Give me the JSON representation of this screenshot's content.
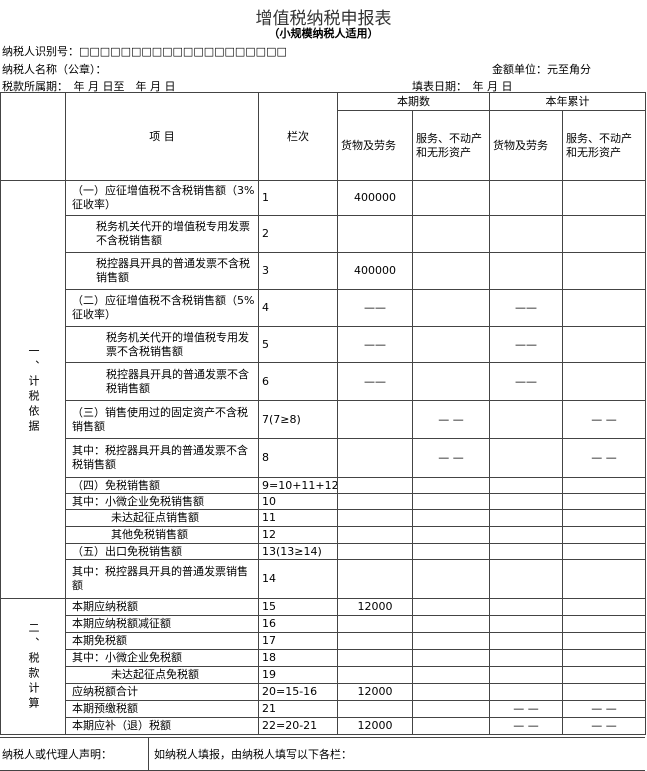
{
  "header": {
    "title": "增值税纳税申报表",
    "subtitle": "（小规模纳税人适用）",
    "taxpayer_id": "纳税人识别号：□□□□□□□□□□□□□□□□□□□□",
    "taxpayer_name": "纳税人名称（公章）：",
    "unit": "金额单位：元至角分",
    "period": "税款所属期：　年 月 日至　年 月 日",
    "fill_date": "填表日期：　年 月 日"
  },
  "table": {
    "col_item": "项 目",
    "col_line": "栏次",
    "current": "本期数",
    "ytd": "本年累计",
    "goods": "货物及劳务",
    "services": "服务、不动产和无形资产",
    "sections": [
      {
        "label": "一、计税依据",
        "rows": [
          [
            "（一）应征增值税不含税销售额（3%征收率）",
            "1",
            "400000",
            null,
            null,
            null
          ],
          [
            "税务机关代开的增值税专用发票不含税销售额",
            "2",
            null,
            null,
            null,
            null
          ],
          [
            "税控器具开具的普通发票不含税销售额",
            "3",
            "400000",
            null,
            null,
            null
          ],
          [
            "（二）应征增值税不含税销售额（5%征收率）",
            "4",
            "——",
            null,
            "——",
            null
          ],
          [
            "税务机关代开的增值税专用发票不含税销售额",
            "5",
            "——",
            null,
            "——",
            null
          ],
          [
            "税控器具开具的普通发票不含税销售额",
            "6",
            "——",
            null,
            "——",
            null
          ],
          [
            "（三）销售使用过的固定资产不含税销售额",
            "7(7≥8)",
            null,
            "— —",
            null,
            "— —"
          ],
          [
            "其中：税控器具开具的普通发票不含税销售额",
            "8",
            null,
            "— —",
            null,
            "— —"
          ],
          [
            "（四）免税销售额",
            "9=10+11+12",
            null,
            null,
            null,
            null
          ],
          [
            "其中：小微企业免税销售额",
            "10",
            null,
            null,
            null,
            null
          ],
          [
            "未达起征点销售额",
            "11",
            null,
            null,
            null,
            null
          ],
          [
            "其他免税销售额",
            "12",
            null,
            null,
            null,
            null
          ],
          [
            "（五）出口免税销售额",
            "13(13≥14)",
            null,
            null,
            null,
            null
          ],
          [
            "其中：税控器具开具的普通发票销售额",
            "14",
            null,
            null,
            null,
            null
          ]
        ]
      },
      {
        "label": "二、税款计算",
        "rows": [
          [
            "本期应纳税额",
            "15",
            "12000",
            null,
            null,
            null
          ],
          [
            "本期应纳税额减征额",
            "16",
            null,
            null,
            null,
            null
          ],
          [
            "本期免税额",
            "17",
            null,
            null,
            null,
            null
          ],
          [
            "其中：小微企业免税额",
            "18",
            null,
            null,
            null,
            null
          ],
          [
            "未达起征点免税额",
            "19",
            null,
            null,
            null,
            null
          ],
          [
            "应纳税额合计",
            "20=15-16",
            "12000",
            null,
            null,
            null
          ],
          [
            "本期预缴税额",
            "21",
            null,
            null,
            "— —",
            "— —"
          ],
          [
            "本期应补（退）税额",
            "22=20-21",
            "12000",
            null,
            "— —",
            "— —"
          ]
        ]
      }
    ]
  },
  "footer": {
    "declaration": "纳税人或代理人声明：",
    "note": "如纳税人填报，由纳税人填写以下各栏："
  }
}
